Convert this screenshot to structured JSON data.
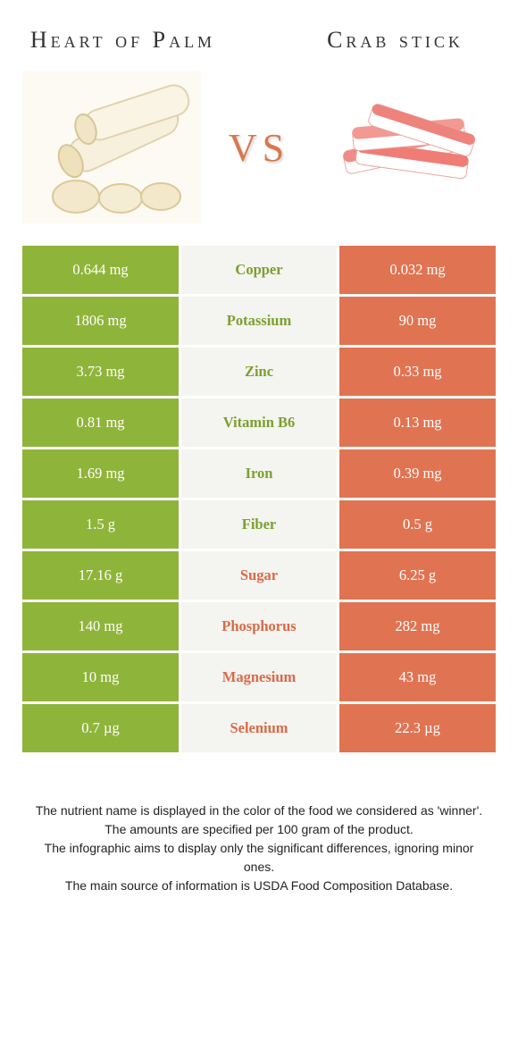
{
  "header": {
    "left_title": "Heart of Palm",
    "right_title": "Crab stick",
    "vs_label": "VS"
  },
  "colors": {
    "left_bg": "#8fb43a",
    "right_bg": "#e07452",
    "mid_bg": "#f4f4f0",
    "green_text": "#7ca02e",
    "orange_text": "#d86a48",
    "vs_color": "#d87850"
  },
  "rows": [
    {
      "left": "0.644 mg",
      "nutrient": "Copper",
      "right": "0.032 mg",
      "winner": "left"
    },
    {
      "left": "1806 mg",
      "nutrient": "Potassium",
      "right": "90 mg",
      "winner": "left"
    },
    {
      "left": "3.73 mg",
      "nutrient": "Zinc",
      "right": "0.33 mg",
      "winner": "left"
    },
    {
      "left": "0.81 mg",
      "nutrient": "Vitamin B6",
      "right": "0.13 mg",
      "winner": "left"
    },
    {
      "left": "1.69 mg",
      "nutrient": "Iron",
      "right": "0.39 mg",
      "winner": "left"
    },
    {
      "left": "1.5 g",
      "nutrient": "Fiber",
      "right": "0.5 g",
      "winner": "left"
    },
    {
      "left": "17.16 g",
      "nutrient": "Sugar",
      "right": "6.25 g",
      "winner": "right"
    },
    {
      "left": "140 mg",
      "nutrient": "Phosphorus",
      "right": "282 mg",
      "winner": "right"
    },
    {
      "left": "10 mg",
      "nutrient": "Magnesium",
      "right": "43 mg",
      "winner": "right"
    },
    {
      "left": "0.7 µg",
      "nutrient": "Selenium",
      "right": "22.3 µg",
      "winner": "right"
    }
  ],
  "footnotes": [
    "The nutrient name is displayed in the color of the food we considered as 'winner'.",
    "The amounts are specified per 100 gram of the product.",
    "The infographic aims to display only the significant differences, ignoring minor ones.",
    "The main source of information is USDA Food Composition Database."
  ]
}
